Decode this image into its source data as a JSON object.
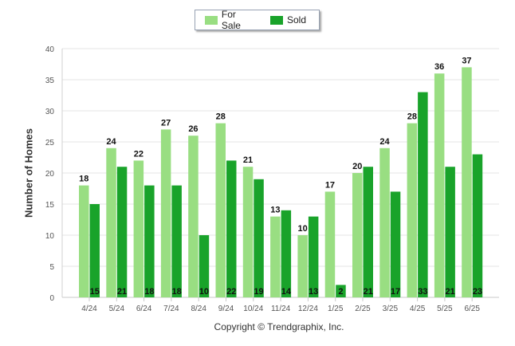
{
  "chart_data": {
    "type": "bar",
    "ylabel": "Number of Homes",
    "xlabel": "",
    "ylim": [
      0,
      40
    ],
    "yticks": [
      0,
      5,
      10,
      15,
      20,
      25,
      30,
      35,
      40
    ],
    "grid": true,
    "legend_position": "top-center",
    "categories": [
      "4/24",
      "5/24",
      "6/24",
      "7/24",
      "8/24",
      "9/24",
      "10/24",
      "11/24",
      "12/24",
      "1/25",
      "2/25",
      "3/25",
      "4/25",
      "5/25",
      "6/25"
    ],
    "series": [
      {
        "name": "For Sale",
        "color": "#99de82",
        "values": [
          18,
          24,
          22,
          27,
          26,
          28,
          21,
          13,
          10,
          17,
          20,
          24,
          28,
          36,
          37
        ]
      },
      {
        "name": "Sold",
        "color": "#19a32a",
        "values": [
          15,
          21,
          18,
          18,
          10,
          22,
          19,
          14,
          13,
          2,
          21,
          17,
          33,
          21,
          23
        ]
      }
    ]
  },
  "legend": {
    "for_sale_label": "For Sale",
    "sold_label": "Sold"
  },
  "footer": {
    "copyright": "Copyright © Trendgraphix, Inc."
  }
}
